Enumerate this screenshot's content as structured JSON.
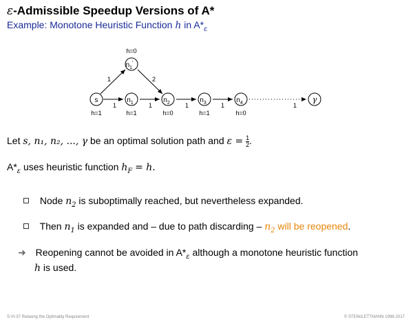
{
  "title": {
    "eps": "ε",
    "text": "-Admissible Speedup Versions of A*"
  },
  "subtitle": {
    "prefix": "Example: Monotone Heuristic Function",
    "h": "h",
    "in": "in A*",
    "sub": "ε"
  },
  "graph": {
    "nodes": [
      {
        "id": "s",
        "label": "s",
        "h": "h=1"
      },
      {
        "id": "n1",
        "label": "n",
        "sub": "1",
        "h": "h=1"
      },
      {
        "id": "n2",
        "label": "n",
        "sub": "2",
        "h": "h=0"
      },
      {
        "id": "n3",
        "label": "n",
        "sub": "3",
        "h": "h=1"
      },
      {
        "id": "n4",
        "label": "n",
        "sub": "4",
        "h": "h=0"
      },
      {
        "id": "gamma",
        "label": "γ",
        "h": ""
      },
      {
        "id": "n1p",
        "label": "n",
        "sub": "1",
        "sup": "'",
        "h": "h=0"
      }
    ],
    "edges": [
      {
        "from": "s",
        "to": "n1p",
        "cost": "1"
      },
      {
        "from": "n1p",
        "to": "n2",
        "cost": "2"
      },
      {
        "from": "s",
        "to": "n1",
        "cost": "1"
      },
      {
        "from": "n1",
        "to": "n2",
        "cost": "1"
      },
      {
        "from": "n2",
        "to": "n3",
        "cost": "1"
      },
      {
        "from": "n3",
        "to": "n4",
        "cost": "1"
      },
      {
        "from": "n4",
        "to": "gamma",
        "cost": "1",
        "dotted": true
      }
    ]
  },
  "para1": {
    "prefix": "Let",
    "path": "s, n₁, n₂, ..., γ",
    "middle": "be an optimal solution path and",
    "eps": "ε =",
    "num": "1",
    "den": "2",
    "end": "."
  },
  "para2": {
    "astar": "A*",
    "sub": "ε",
    "middle": "uses heuristic function",
    "hf": "h",
    "hfsub": "F",
    "eq": "= h."
  },
  "bullets": [
    {
      "prefix": "Node",
      "var": "n",
      "sub": "2",
      "text": "is suboptimally reached, but nevertheless expanded."
    },
    {
      "prefix": "Then",
      "var": "n",
      "sub": "1",
      "text": "is expanded and – due to path discarding –",
      "var2": "n",
      "sub2": "2",
      "orange": "will be reopened",
      "end": "."
    }
  ],
  "conclusion": {
    "line1a": "Reopening cannot be avoided in A*",
    "sub": "ε",
    "line1b": "although a monotone heuristic function",
    "h": "h",
    "line2": "is used."
  },
  "footer": {
    "left": "S:VI-37   Relaxing the Optimality Requirement",
    "right": "© STEIN/LETTMANN 1998-2017"
  }
}
